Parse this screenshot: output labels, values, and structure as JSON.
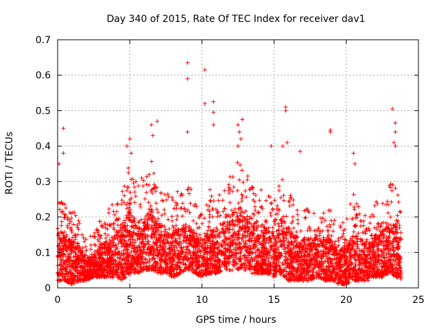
{
  "chart_data": {
    "type": "scatter",
    "title": "Day 340 of 2015, Rate Of TEC Index for receiver dav1",
    "xlabel": "GPS time / hours",
    "ylabel": "ROTI / TECUs",
    "xlim": [
      0,
      25
    ],
    "ylim": [
      0,
      0.7
    ],
    "xticks": [
      0,
      5,
      10,
      15,
      20,
      25
    ],
    "xtick_labels": [
      "0",
      "5",
      "10",
      "15",
      "20",
      "25"
    ],
    "yticks": [
      0,
      0.1,
      0.2,
      0.3,
      0.4,
      0.5,
      0.6,
      0.7
    ],
    "ytick_labels": [
      "0",
      "0.1",
      "0.2",
      "0.3",
      "0.4",
      "0.5",
      "0.6",
      "0.7"
    ],
    "grid": true,
    "marker": "plus",
    "series_color": "#ff0000",
    "density_profile": {
      "x": [
        0,
        0.5,
        1,
        1.5,
        2,
        2.5,
        3,
        3.5,
        4,
        4.5,
        5,
        5.5,
        6,
        6.5,
        7,
        7.5,
        8,
        8.5,
        9,
        9.5,
        10,
        10.5,
        11,
        11.5,
        12,
        12.5,
        13,
        13.5,
        14,
        14.5,
        15,
        15.5,
        16,
        16.5,
        17,
        17.5,
        18,
        18.5,
        19,
        19.5,
        20,
        20.5,
        21,
        21.5,
        22,
        22.5,
        23,
        23.5,
        23.8
      ],
      "upper": [
        0.27,
        0.24,
        0.22,
        0.2,
        0.14,
        0.15,
        0.2,
        0.22,
        0.25,
        0.3,
        0.36,
        0.3,
        0.32,
        0.36,
        0.3,
        0.28,
        0.26,
        0.28,
        0.3,
        0.26,
        0.22,
        0.28,
        0.26,
        0.3,
        0.34,
        0.38,
        0.34,
        0.3,
        0.3,
        0.27,
        0.25,
        0.32,
        0.28,
        0.24,
        0.22,
        0.23,
        0.25,
        0.22,
        0.22,
        0.17,
        0.2,
        0.27,
        0.22,
        0.2,
        0.24,
        0.26,
        0.3,
        0.28,
        0.22
      ],
      "lower": [
        0.02,
        0.02,
        0.01,
        0.02,
        0.02,
        0.03,
        0.03,
        0.03,
        0.03,
        0.02,
        0.04,
        0.04,
        0.05,
        0.05,
        0.04,
        0.04,
        0.03,
        0.04,
        0.05,
        0.04,
        0.03,
        0.04,
        0.04,
        0.05,
        0.05,
        0.05,
        0.05,
        0.04,
        0.04,
        0.04,
        0.03,
        0.04,
        0.02,
        0.02,
        0.02,
        0.02,
        0.03,
        0.02,
        0.02,
        0.01,
        0.01,
        0.02,
        0.02,
        0.02,
        0.03,
        0.03,
        0.04,
        0.03,
        0.02
      ]
    },
    "outliers": [
      {
        "x": 0.4,
        "y": 0.45
      },
      {
        "x": 0.4,
        "y": 0.38
      },
      {
        "x": 0.1,
        "y": 0.35
      },
      {
        "x": 5.0,
        "y": 0.42
      },
      {
        "x": 4.8,
        "y": 0.4
      },
      {
        "x": 5.1,
        "y": 0.38
      },
      {
        "x": 6.5,
        "y": 0.46
      },
      {
        "x": 6.9,
        "y": 0.47
      },
      {
        "x": 6.6,
        "y": 0.43
      },
      {
        "x": 9.0,
        "y": 0.635
      },
      {
        "x": 9.0,
        "y": 0.59
      },
      {
        "x": 9.0,
        "y": 0.44
      },
      {
        "x": 10.2,
        "y": 0.615
      },
      {
        "x": 10.2,
        "y": 0.52
      },
      {
        "x": 10.8,
        "y": 0.525
      },
      {
        "x": 10.8,
        "y": 0.495
      },
      {
        "x": 10.8,
        "y": 0.46
      },
      {
        "x": 12.5,
        "y": 0.46
      },
      {
        "x": 12.8,
        "y": 0.475
      },
      {
        "x": 12.6,
        "y": 0.44
      },
      {
        "x": 12.7,
        "y": 0.42
      },
      {
        "x": 12.5,
        "y": 0.4
      },
      {
        "x": 14.8,
        "y": 0.4
      },
      {
        "x": 15.8,
        "y": 0.51
      },
      {
        "x": 15.8,
        "y": 0.5
      },
      {
        "x": 15.9,
        "y": 0.41
      },
      {
        "x": 15.6,
        "y": 0.4
      },
      {
        "x": 16.8,
        "y": 0.385
      },
      {
        "x": 18.9,
        "y": 0.445
      },
      {
        "x": 18.9,
        "y": 0.44
      },
      {
        "x": 20.5,
        "y": 0.38
      },
      {
        "x": 20.6,
        "y": 0.35
      },
      {
        "x": 23.2,
        "y": 0.505
      },
      {
        "x": 23.4,
        "y": 0.465
      },
      {
        "x": 23.4,
        "y": 0.44
      },
      {
        "x": 23.3,
        "y": 0.41
      },
      {
        "x": 23.4,
        "y": 0.4
      }
    ]
  }
}
